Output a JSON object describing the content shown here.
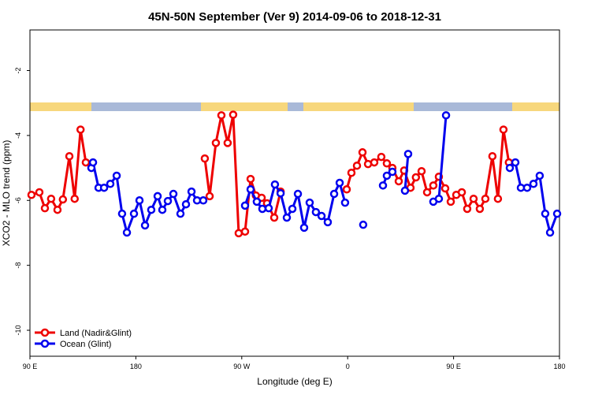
{
  "chart_data": {
    "type": "line",
    "title": "45N-50N September (Ver 9)   2014-09-06 to 2018-12-31",
    "xlabel": "Longitude (deg E)",
    "ylabel": "XCO2 - MLO trend (ppm)",
    "xlim": [
      90,
      540
    ],
    "xticks": [
      {
        "value": 90,
        "label": "90 E"
      },
      {
        "value": 180,
        "label": "180"
      },
      {
        "value": 270,
        "label": "90 W"
      },
      {
        "value": 360,
        "label": "0"
      },
      {
        "value": 450,
        "label": "90 E"
      },
      {
        "value": 540,
        "label": "180"
      }
    ],
    "ylim": [
      -10.8,
      -0.75
    ],
    "yticks": [
      -10,
      -8,
      -6,
      -4,
      -2
    ],
    "legend": "bottom-left",
    "series": [
      {
        "name": "Land (Nadir&Glint)",
        "color": "#ee0000",
        "x": [
          91.3,
          98,
          102.7,
          108,
          113.4,
          118,
          123.5,
          128,
          133,
          137.5,
          null,
          238.6,
          242.7,
          248,
          252.7,
          258,
          262.7,
          267.4,
          272.8,
          277.5,
          282,
          286.9,
          291.5,
          297.6,
          303,
          null,
          359.2,
          363.2,
          367.9,
          372.6,
          377.3,
          382.6,
          388.6,
          393.3,
          398,
          403.4,
          408,
          413.4,
          418,
          422.8,
          427.5,
          432.8,
          437.5,
          442.9,
          447.6,
          452.3,
          457,
          461.6,
          467,
          472.3,
          477,
          483,
          487.7,
          492.4,
          497
        ],
        "values": [
          -5.83,
          -5.75,
          -6.24,
          -5.95,
          -6.29,
          -5.97,
          -4.64,
          -5.95,
          -3.82,
          -4.83,
          null,
          -4.71,
          -5.87,
          -4.23,
          -3.38,
          -4.23,
          -3.36,
          -7.01,
          -6.96,
          -5.34,
          -5.85,
          -5.92,
          -6.09,
          -6.53,
          -5.73,
          null,
          -5.66,
          -5.15,
          -4.93,
          -4.52,
          -4.88,
          -4.83,
          -4.66,
          -4.86,
          -5.0,
          -5.41,
          -5.08,
          -5.61,
          -5.29,
          -5.1,
          -5.75,
          -5.54,
          -5.27,
          -5.63,
          -6.04,
          -5.83,
          -5.75,
          -6.26,
          -5.95,
          -6.26,
          -5.95,
          -4.64,
          -5.95,
          -3.82,
          -4.83
        ]
      },
      {
        "name": "Ocean (Glint)",
        "color": "#0000ee",
        "x": [
          142.2,
          143.6,
          148.3,
          153,
          158.3,
          163.7,
          168.3,
          172.4,
          178.4,
          183.1,
          187.8,
          193.1,
          198.5,
          202.5,
          207.2,
          211.9,
          217.9,
          222.6,
          227.3,
          232,
          237.3,
          null,
          272.8,
          277.5,
          282.8,
          287.5,
          292.9,
          298.2,
          303,
          308.3,
          313,
          317.7,
          323,
          327.7,
          333,
          337.8,
          343.1,
          348.5,
          353.2,
          357.8,
          null,
          373.2,
          null,
          390,
          393.3,
          398,
          null,
          408.7,
          411.4,
          null,
          432.8,
          437.5,
          443.6,
          null,
          497.8,
          502.5,
          507.2,
          512.5,
          517.9,
          523.2,
          527.9,
          532,
          538
        ],
        "values": [
          -5.0,
          -4.83,
          -5.61,
          -5.61,
          -5.49,
          -5.24,
          -6.41,
          -6.99,
          -6.41,
          -6.0,
          -6.77,
          -6.29,
          -5.87,
          -6.29,
          -6.02,
          -5.8,
          -6.41,
          -6.12,
          -5.73,
          -6.0,
          -6.0,
          null,
          -6.16,
          -5.66,
          -6.04,
          -6.26,
          -6.24,
          -5.51,
          -5.78,
          -6.53,
          -6.26,
          -5.8,
          -6.84,
          -6.07,
          -6.36,
          -6.48,
          -6.67,
          -5.8,
          -5.46,
          -6.07,
          null,
          -6.75,
          null,
          -5.54,
          -5.24,
          -5.12,
          null,
          -5.7,
          -4.57,
          null,
          -6.04,
          -5.95,
          -3.38,
          null,
          -5.0,
          -4.83,
          -5.61,
          -5.61,
          -5.49,
          -5.24,
          -6.41,
          -6.99,
          -6.41
        ]
      }
    ]
  }
}
